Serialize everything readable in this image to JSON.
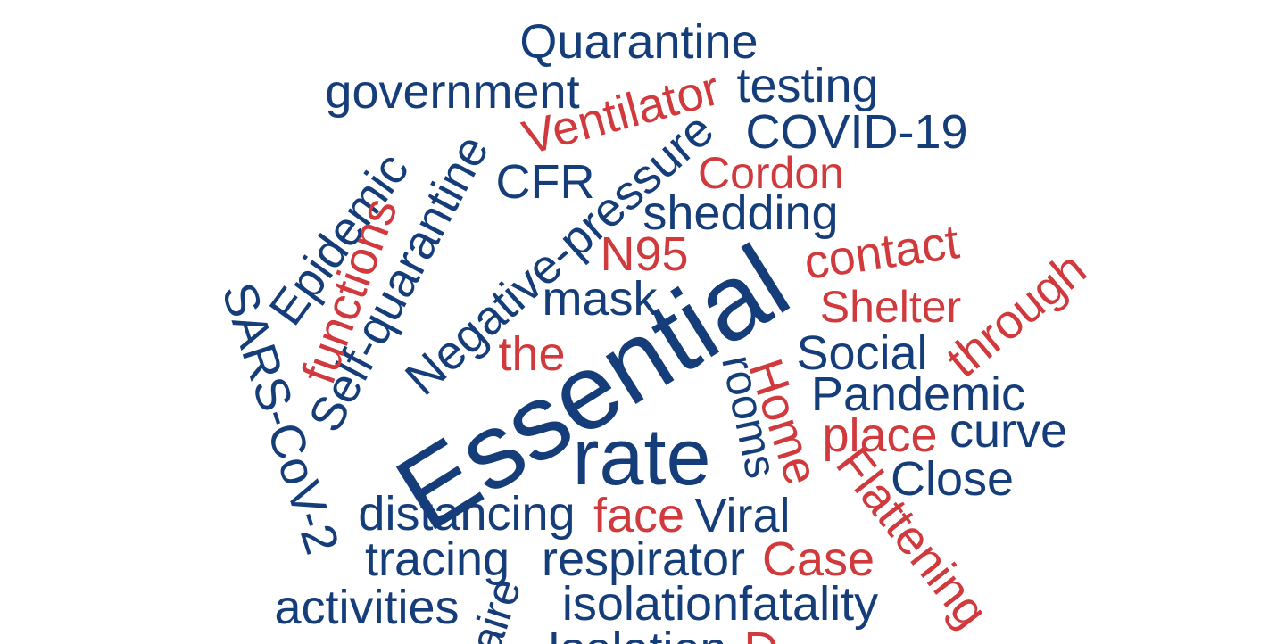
{
  "colors": {
    "blue": "#143d7a",
    "red": "#d13a3d",
    "background": "#ffffff"
  },
  "words": {
    "quarantine": "Quarantine",
    "government": "government",
    "testing": "testing",
    "ventilator": "Ventilator",
    "covid": "COVID-19",
    "self_quarantine": "Self-quarantine",
    "cfr": "CFR",
    "cordon": "Cordon",
    "epidemic": "Epidemic",
    "negative_pressure": "Negative-pressure",
    "shedding": "shedding",
    "functions": "functions",
    "n95": "N95",
    "contact": "contact",
    "sars_cov_2": "SARS-CoV-2",
    "mask": "mask",
    "essential": "Essential",
    "shelter": "Shelter",
    "through": "through",
    "the": "the",
    "social": "Social",
    "rooms": "rooms",
    "home": "Home",
    "pandemic": "Pandemic",
    "rate": "rate",
    "place": "place",
    "curve": "curve",
    "flattening": "Flattening",
    "close": "Close",
    "distancing": "distancing",
    "face": "face",
    "viral": "Viral",
    "tracing": "tracing",
    "respirator": "respirator",
    "case": "Case",
    "activities": "activities",
    "aire": "aire",
    "isolation_fatality": "isolationfatality",
    "isolation_partial": "Isolation",
    "d_partial": "D"
  }
}
